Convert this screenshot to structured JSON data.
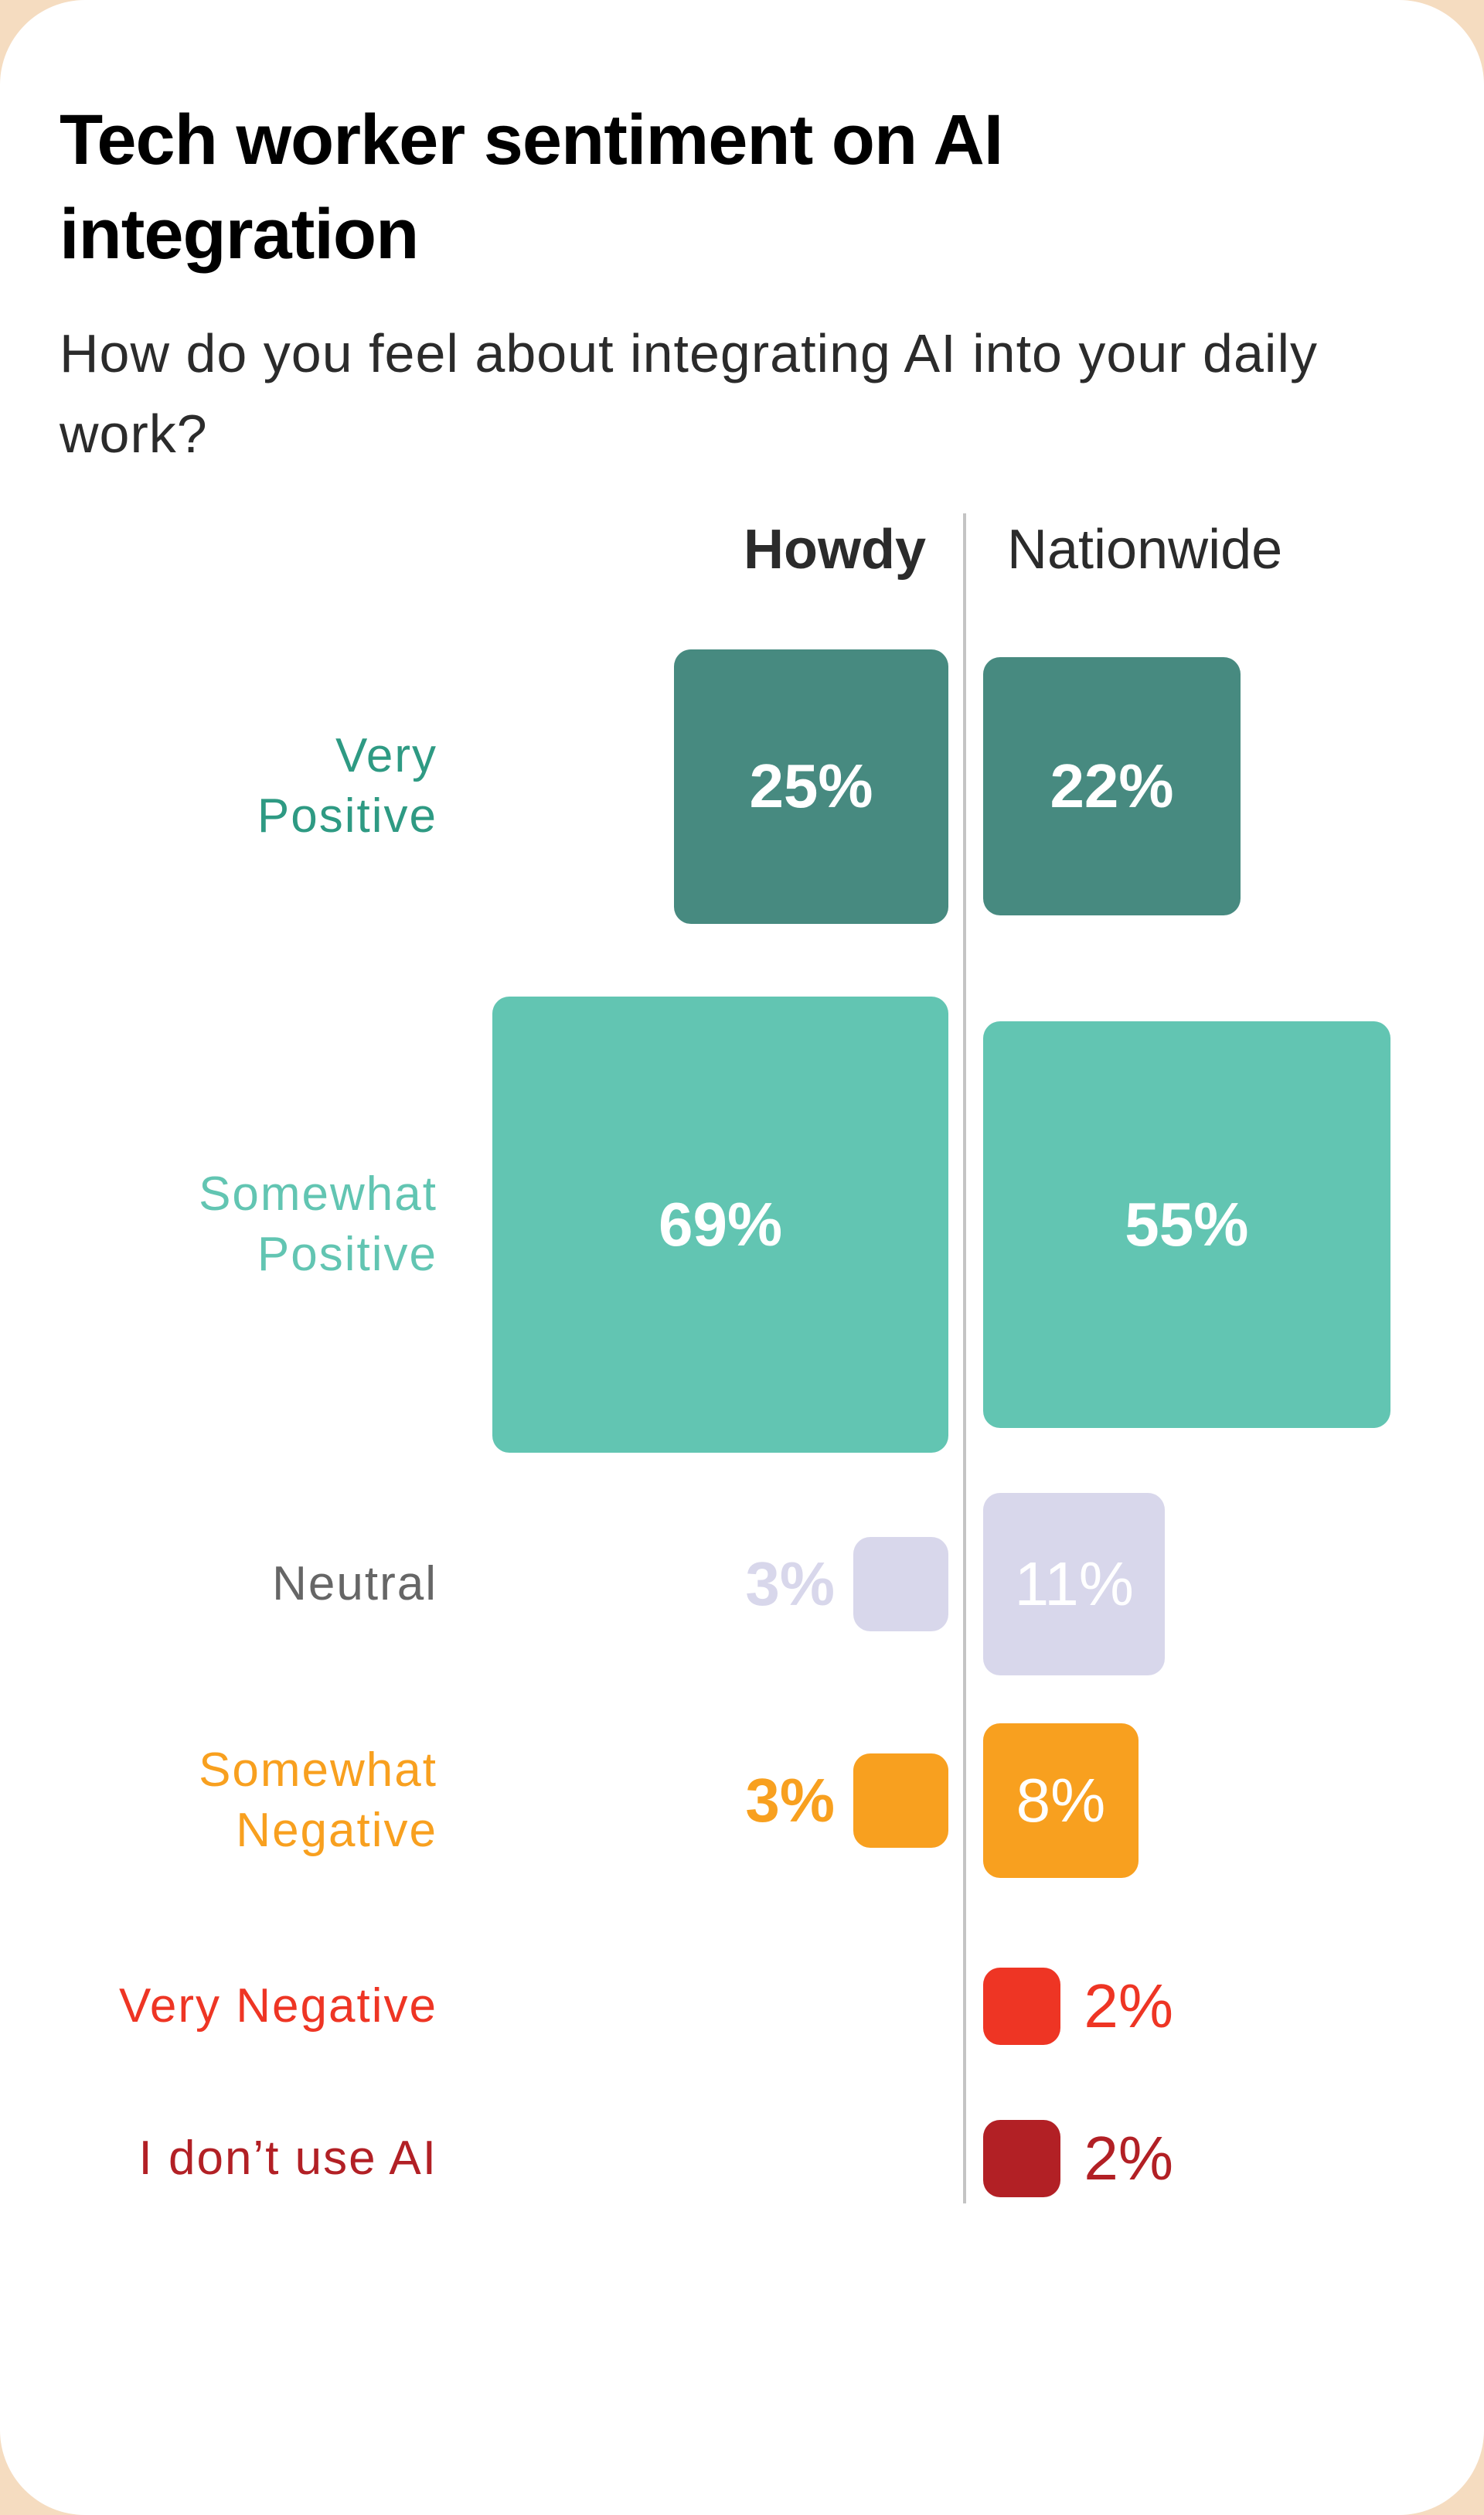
{
  "title": "Tech worker sentiment on AI integration",
  "subtitle": "How do you feel about integrating AI into your daily work?",
  "chart_data": {
    "type": "proportional-square",
    "title": "Tech worker sentiment on AI integration",
    "subtitle": "How do you feel about integrating AI into your daily work?",
    "unit": "%",
    "columns": [
      "Howdy",
      "Nationwide"
    ],
    "categories": [
      "Very Positive",
      "Somewhat Positive",
      "Neutral",
      "Somewhat Negative",
      "Very Negative",
      "I don’t use AI"
    ],
    "series": [
      {
        "name": "Howdy",
        "values": [
          25,
          69,
          3,
          3,
          null,
          null
        ]
      },
      {
        "name": "Nationwide",
        "values": [
          22,
          55,
          11,
          8,
          2,
          2
        ]
      }
    ],
    "value_labels": {
      "Howdy": [
        "25%",
        "69%",
        "3%",
        "3%",
        null,
        null
      ],
      "Nationwide": [
        "22%",
        "55%",
        "11%",
        "8%",
        "2%",
        "2%"
      ]
    },
    "category_label_lines": [
      [
        "Very",
        "Positive"
      ],
      [
        "Somewhat",
        "Positive"
      ],
      [
        "Neutral"
      ],
      [
        "Somewhat",
        "Negative"
      ],
      [
        "Very Negative"
      ],
      [
        "I don’t use AI"
      ]
    ],
    "colors": [
      "#478a80",
      "#62c5b2",
      "#d8d7eb",
      "#f8a01f",
      "#ee3524",
      "#b22025"
    ],
    "label_colors": [
      "#2e9a83",
      "#62c5b2",
      "#666666",
      "#f8a01f",
      "#ee3524",
      "#b22025"
    ]
  }
}
